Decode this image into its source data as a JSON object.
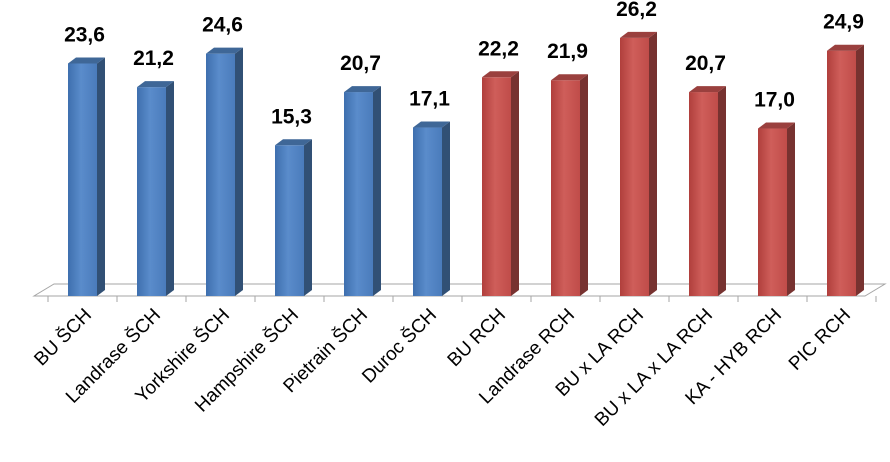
{
  "chart_data": {
    "type": "bar",
    "categories": [
      "BU ŠCH",
      "Landrase ŠCH",
      "Yorkshire ŠCH",
      "Hampshire ŠCH",
      "Pietrain ŠCH",
      "Duroc ŠCH",
      "BU RCH",
      "Landrase RCH",
      "BU x LA RCH",
      "BU x  LA x LA RCH",
      "KA - HYB RCH",
      "PIC RCH"
    ],
    "values": [
      23.6,
      21.2,
      24.6,
      15.3,
      20.7,
      17.1,
      22.2,
      21.9,
      26.2,
      20.7,
      17.0,
      24.9
    ],
    "value_labels": [
      "23,6",
      "21,2",
      "24,6",
      "15,3",
      "20,7",
      "17,1",
      "22,2",
      "21,9",
      "26,2",
      "20,7",
      "17,0",
      "24,9"
    ],
    "bar_colors": [
      "#4f81bd",
      "#4f81bd",
      "#4f81bd",
      "#4f81bd",
      "#4f81bd",
      "#4f81bd",
      "#c0504d",
      "#c0504d",
      "#c0504d",
      "#c0504d",
      "#c0504d",
      "#c0504d"
    ],
    "title": "",
    "xlabel": "",
    "ylabel": "",
    "ylim": [
      0,
      27
    ],
    "grid": false,
    "legend": "none",
    "style": "3d-column"
  }
}
